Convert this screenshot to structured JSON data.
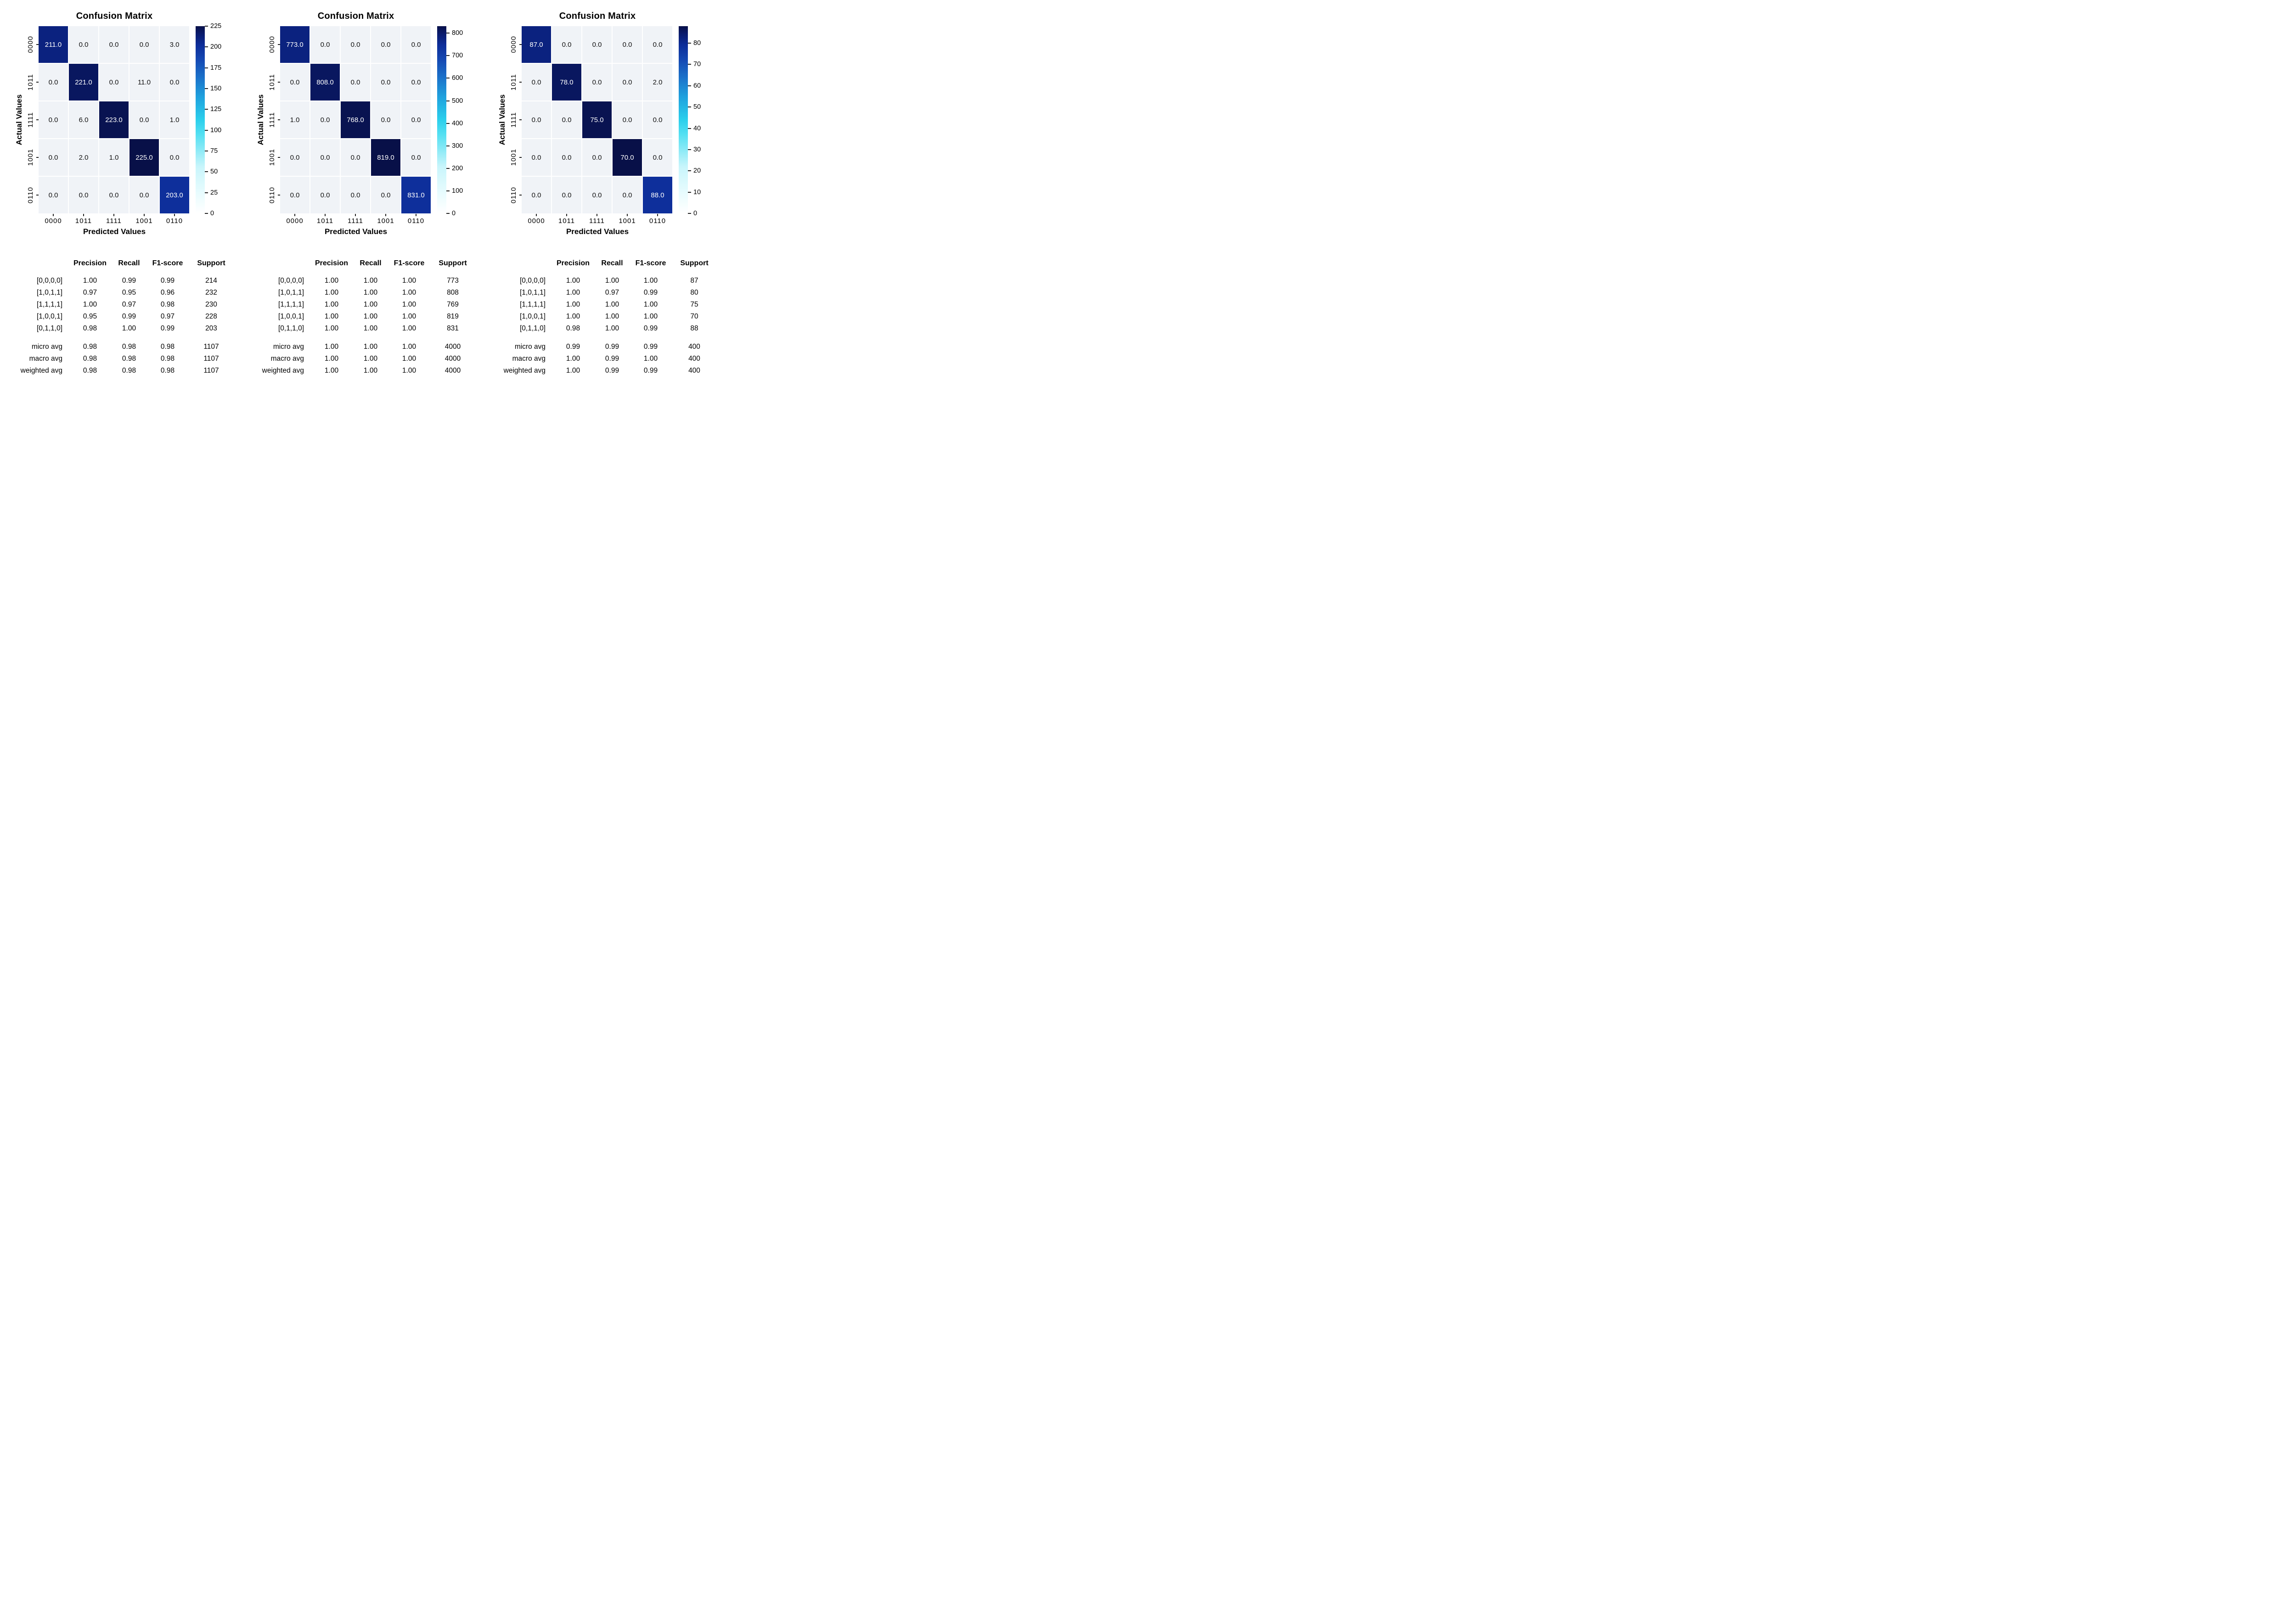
{
  "colors": {
    "zero_cell": "#f0f3f7",
    "cell_text_on_dark": "#ffffff",
    "cell_text_on_light": "#111111",
    "tick_color": "#222222",
    "diag_shades": [
      0.935,
      0.975,
      0.99,
      1.0,
      0.895
    ],
    "colormap_stops": [
      [
        0.0,
        "#ffffff"
      ],
      [
        0.1,
        "#eafcfe"
      ],
      [
        0.25,
        "#c8f5fb"
      ],
      [
        0.42,
        "#55e0f2"
      ],
      [
        0.5,
        "#2bcfec"
      ],
      [
        0.62,
        "#1fa2de"
      ],
      [
        0.72,
        "#1b74cb"
      ],
      [
        0.82,
        "#1549b3"
      ],
      [
        0.9,
        "#0d2d99"
      ],
      [
        0.96,
        "#0a1b6d"
      ],
      [
        1.0,
        "#081048"
      ]
    ]
  },
  "chart_data": [
    {
      "type": "heatmap",
      "title": "Confusion Matrix",
      "xlabel": "Predicted Values",
      "ylabel": "Actual Values",
      "x": [
        "0000",
        "1011",
        "1111",
        "1001",
        "0110"
      ],
      "y": [
        "0000",
        "1011",
        "1111",
        "1001",
        "0110"
      ],
      "matrix": [
        [
          211,
          0,
          0,
          0,
          3
        ],
        [
          0,
          221,
          0,
          11,
          0
        ],
        [
          0,
          6,
          223,
          0,
          1
        ],
        [
          0,
          2,
          1,
          225,
          0
        ],
        [
          0,
          0,
          0,
          0,
          203
        ]
      ],
      "colorbar": {
        "vmin": 0,
        "vmax": 225,
        "ticks": [
          0,
          25,
          50,
          75,
          100,
          125,
          150,
          175,
          200,
          225
        ]
      },
      "report": {
        "headers": [
          "Precision",
          "Recall",
          "F1-score",
          "Support"
        ],
        "rows": [
          [
            "[0,0,0,0]",
            "1.00",
            "0.99",
            "0.99",
            "214"
          ],
          [
            "[1,0,1,1]",
            "0.97",
            "0.95",
            "0.96",
            "232"
          ],
          [
            "[1,1,1,1]",
            "1.00",
            "0.97",
            "0.98",
            "230"
          ],
          [
            "[1,0,0,1]",
            "0.95",
            "0.99",
            "0.97",
            "228"
          ],
          [
            "[0,1,1,0]",
            "0.98",
            "1.00",
            "0.99",
            "203"
          ]
        ],
        "avg_rows": [
          [
            "micro avg",
            "0.98",
            "0.98",
            "0.98",
            "1107"
          ],
          [
            "macro avg",
            "0.98",
            "0.98",
            "0.98",
            "1107"
          ],
          [
            "weighted avg",
            "0.98",
            "0.98",
            "0.98",
            "1107"
          ]
        ]
      }
    },
    {
      "type": "heatmap",
      "title": "Confusion Matrix",
      "xlabel": "Predicted Values",
      "ylabel": "Actual Values",
      "x": [
        "0000",
        "1011",
        "1111",
        "1001",
        "0110"
      ],
      "y": [
        "0000",
        "1011",
        "1111",
        "1001",
        "0110"
      ],
      "matrix": [
        [
          773,
          0,
          0,
          0,
          0
        ],
        [
          0,
          808,
          0,
          0,
          0
        ],
        [
          1,
          0,
          768,
          0,
          0
        ],
        [
          0,
          0,
          0,
          819,
          0
        ],
        [
          0,
          0,
          0,
          0,
          831
        ]
      ],
      "colorbar": {
        "vmin": 0,
        "vmax": 831,
        "ticks": [
          0,
          100,
          200,
          300,
          400,
          500,
          600,
          700,
          800
        ]
      },
      "report": {
        "headers": [
          "Precision",
          "Recall",
          "F1-score",
          "Support"
        ],
        "rows": [
          [
            "[0,0,0,0]",
            "1.00",
            "1.00",
            "1.00",
            "773"
          ],
          [
            "[1,0,1,1]",
            "1.00",
            "1.00",
            "1.00",
            "808"
          ],
          [
            "[1,1,1,1]",
            "1.00",
            "1.00",
            "1.00",
            "769"
          ],
          [
            "[1,0,0,1]",
            "1.00",
            "1.00",
            "1.00",
            "819"
          ],
          [
            "[0,1,1,0]",
            "1.00",
            "1.00",
            "1.00",
            "831"
          ]
        ],
        "avg_rows": [
          [
            "micro avg",
            "1.00",
            "1.00",
            "1.00",
            "4000"
          ],
          [
            "macro avg",
            "1.00",
            "1.00",
            "1.00",
            "4000"
          ],
          [
            "weighted avg",
            "1.00",
            "1.00",
            "1.00",
            "4000"
          ]
        ]
      }
    },
    {
      "type": "heatmap",
      "title": "Confusion Matrix",
      "xlabel": "Predicted Values",
      "ylabel": "Actual Values",
      "x": [
        "0000",
        "1011",
        "1111",
        "1001",
        "0110"
      ],
      "y": [
        "0000",
        "1011",
        "1111",
        "1001",
        "0110"
      ],
      "matrix": [
        [
          87,
          0,
          0,
          0,
          0
        ],
        [
          0,
          78,
          0,
          0,
          2
        ],
        [
          0,
          0,
          75,
          0,
          0
        ],
        [
          0,
          0,
          0,
          70,
          0
        ],
        [
          0,
          0,
          0,
          0,
          88
        ]
      ],
      "colorbar": {
        "vmin": 0,
        "vmax": 88,
        "ticks": [
          0,
          10,
          20,
          30,
          40,
          50,
          60,
          70,
          80
        ]
      },
      "report": {
        "headers": [
          "Precision",
          "Recall",
          "F1-score",
          "Support"
        ],
        "rows": [
          [
            "[0,0,0,0]",
            "1.00",
            "1.00",
            "1.00",
            "87"
          ],
          [
            "[1,0,1,1]",
            "1.00",
            "0.97",
            "0.99",
            "80"
          ],
          [
            "[1,1,1,1]",
            "1.00",
            "1.00",
            "1.00",
            "75"
          ],
          [
            "[1,0,0,1]",
            "1.00",
            "1.00",
            "1.00",
            "70"
          ],
          [
            "[0,1,1,0]",
            "0.98",
            "1.00",
            "0.99",
            "88"
          ]
        ],
        "avg_rows": [
          [
            "micro avg",
            "0.99",
            "0.99",
            "0.99",
            "400"
          ],
          [
            "macro avg",
            "1.00",
            "0.99",
            "1.00",
            "400"
          ],
          [
            "weighted avg",
            "1.00",
            "0.99",
            "0.99",
            "400"
          ]
        ]
      }
    }
  ]
}
